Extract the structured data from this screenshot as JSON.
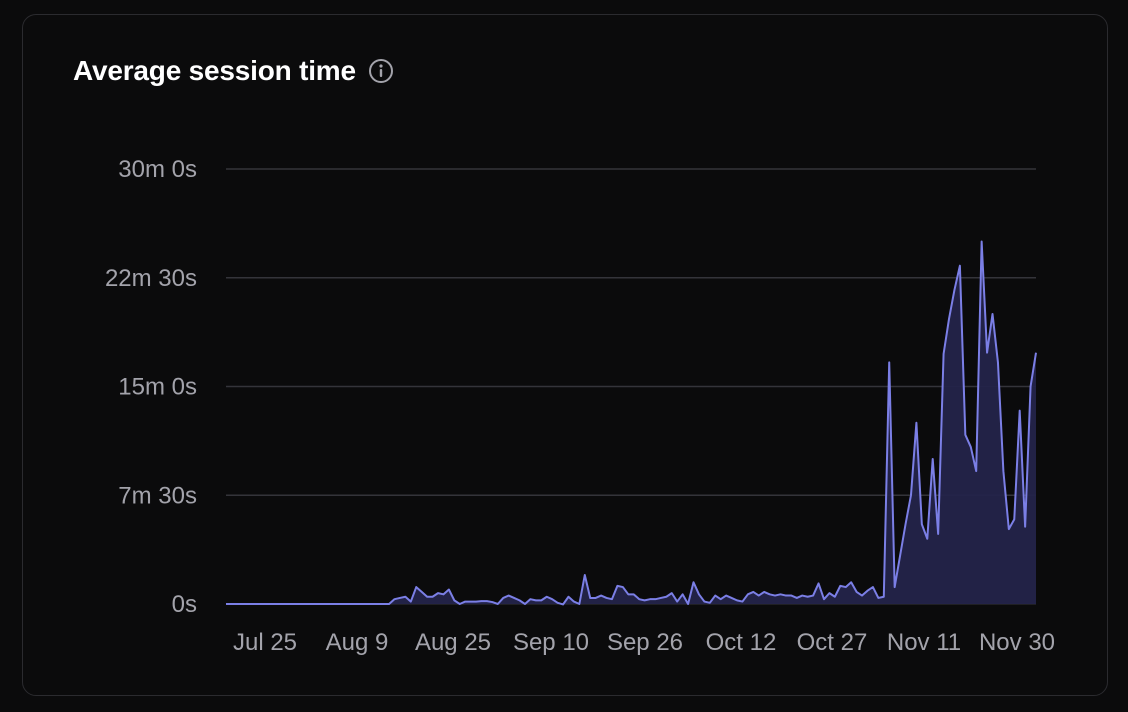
{
  "card": {
    "title": "Average session time",
    "info_icon": "info-circle-icon"
  },
  "colors": {
    "background": "#0b0b0c",
    "line": "#7b7fe6",
    "fill": "#24244a",
    "grid": "#34343a",
    "tick_text": "#a3a3ab",
    "title": "#ffffff"
  },
  "chart_data": {
    "type": "area",
    "title": "Average session time",
    "ylabel": "",
    "xlabel": "",
    "y_unit": "seconds",
    "ylim": [
      0,
      1800
    ],
    "yticks": [
      0,
      450,
      900,
      1350,
      1800
    ],
    "ytick_labels": [
      "0s",
      "7m 30s",
      "15m 0s",
      "22m 30s",
      "30m 0s"
    ],
    "xtick_labels": [
      "Jul 25",
      "Aug 9",
      "Aug 25",
      "Sep 10",
      "Sep 26",
      "Oct 12",
      "Oct 27",
      "Nov 11",
      "Nov 30"
    ],
    "grid": true,
    "series": [
      {
        "values": [
          0,
          0,
          0,
          0,
          0,
          0,
          0,
          0,
          0,
          0,
          0,
          0,
          0,
          0,
          0,
          0,
          0,
          0,
          0,
          0,
          0,
          0,
          0,
          0,
          0,
          0,
          0,
          0,
          0,
          0,
          0,
          20,
          25,
          30,
          10,
          70,
          50,
          30,
          30,
          45,
          40,
          60,
          15,
          0,
          10,
          10,
          10,
          12,
          12,
          8,
          0,
          25,
          35,
          25,
          15,
          0,
          20,
          15,
          15,
          30,
          20,
          5,
          -2,
          30,
          10,
          0,
          120,
          25,
          25,
          35,
          25,
          20,
          75,
          70,
          40,
          40,
          20,
          15,
          20,
          20,
          25,
          30,
          45,
          10,
          40,
          0,
          90,
          40,
          10,
          5,
          35,
          20,
          35,
          25,
          15,
          10,
          40,
          50,
          35,
          50,
          40,
          35,
          40,
          35,
          35,
          25,
          35,
          30,
          35,
          85,
          20,
          45,
          30,
          75,
          70,
          90,
          50,
          35,
          55,
          70,
          25,
          30,
          1000,
          70,
          200,
          330,
          450,
          750,
          330,
          270,
          600,
          290,
          1035,
          1180,
          1300,
          1400,
          700,
          650,
          550,
          1500,
          1040,
          1200,
          1000,
          550,
          310,
          350,
          800,
          320,
          900,
          1040
        ]
      }
    ]
  }
}
